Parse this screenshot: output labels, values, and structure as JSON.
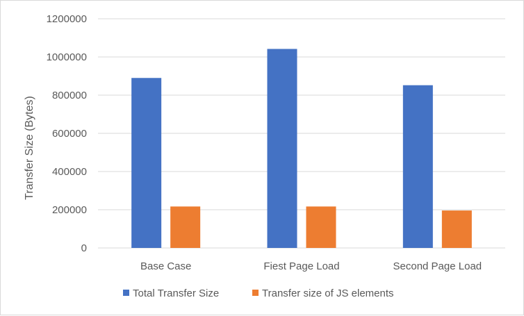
{
  "chart_data": {
    "type": "bar",
    "title": "",
    "xlabel": "",
    "ylabel": "Transfer Size (Bytes)",
    "categories": [
      "Base Case",
      "Fiest Page Load",
      "Second Page Load"
    ],
    "series": [
      {
        "name": "Total Transfer Size",
        "color": "#4472c4",
        "values": [
          890000,
          1042000,
          852000
        ]
      },
      {
        "name": "Transfer size of JS elements",
        "color": "#ed7d31",
        "values": [
          217000,
          217000,
          196000
        ]
      }
    ],
    "ylim": [
      0,
      1200000
    ],
    "yticks": [
      "0",
      "200000",
      "400000",
      "600000",
      "800000",
      "1000000",
      "1200000"
    ],
    "grid": true,
    "legend_position": "bottom"
  }
}
